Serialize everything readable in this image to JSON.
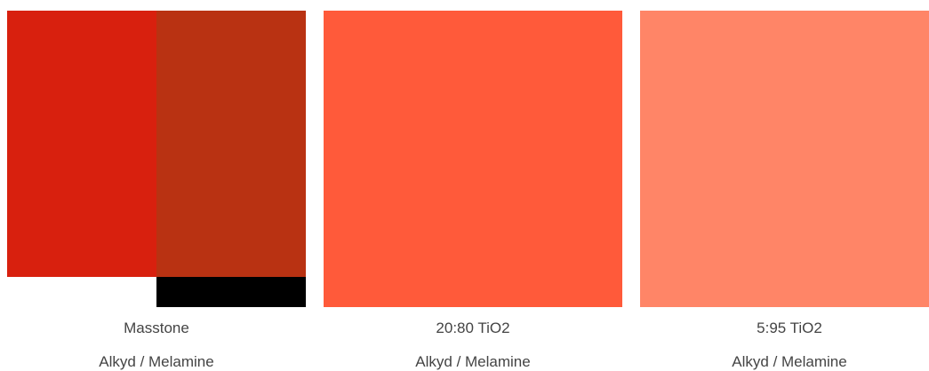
{
  "swatches": [
    {
      "label": "Masstone",
      "system": "Alkyd / Melamine",
      "colors": {
        "left": "#D8200E",
        "right": "#B93212",
        "strip": "#000000"
      }
    },
    {
      "label": "20:80 TiO2",
      "system": "Alkyd / Melamine",
      "colors": {
        "fill": "#FF5A3A"
      }
    },
    {
      "label": "5:95 TiO2",
      "system": "Alkyd / Melamine",
      "colors": {
        "fill": "#FF8567"
      }
    }
  ]
}
